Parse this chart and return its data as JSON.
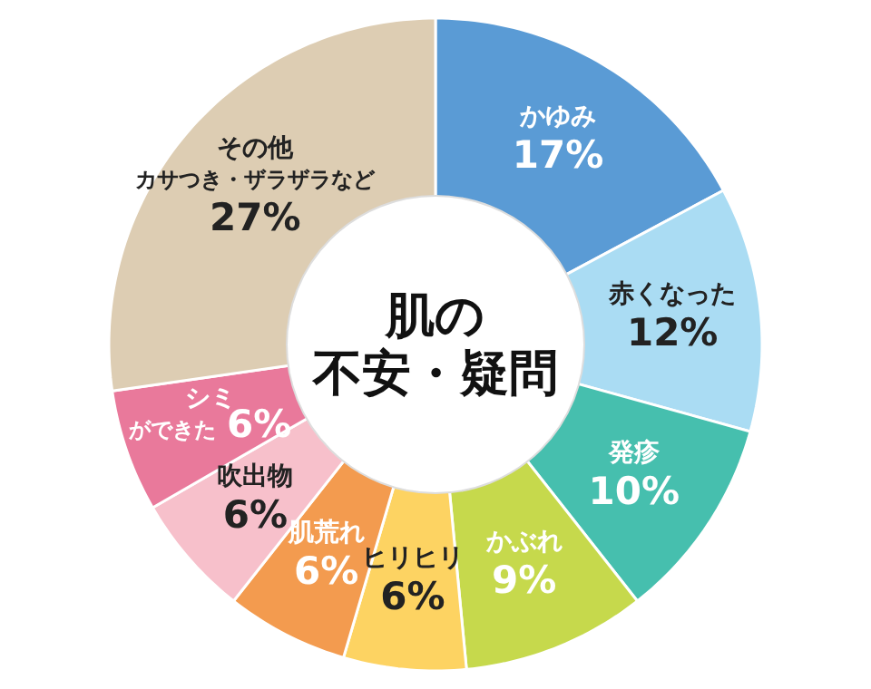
{
  "chart_data": {
    "type": "donut",
    "title": "肌の不安・疑問",
    "categories": [
      "かゆみ",
      "赤くなった",
      "発疹",
      "かぶれ",
      "ヒリヒリ",
      "肌荒れ",
      "吹出物",
      "シミができた",
      "その他カサつき・ザラザラなど"
    ],
    "values": [
      17,
      12,
      10,
      9,
      6,
      6,
      6,
      6,
      27
    ],
    "value_labels": [
      "17%",
      "12%",
      "10%",
      "9%",
      "6%",
      "6%",
      "6%",
      "6%",
      "27%"
    ],
    "colors": [
      "#5a9bd5",
      "#aadcf3",
      "#46bfae",
      "#c6d94c",
      "#fdd362",
      "#f39b4f",
      "#f7c0cb",
      "#e9799b",
      "#ddcdb3"
    ],
    "legend": false
  }
}
